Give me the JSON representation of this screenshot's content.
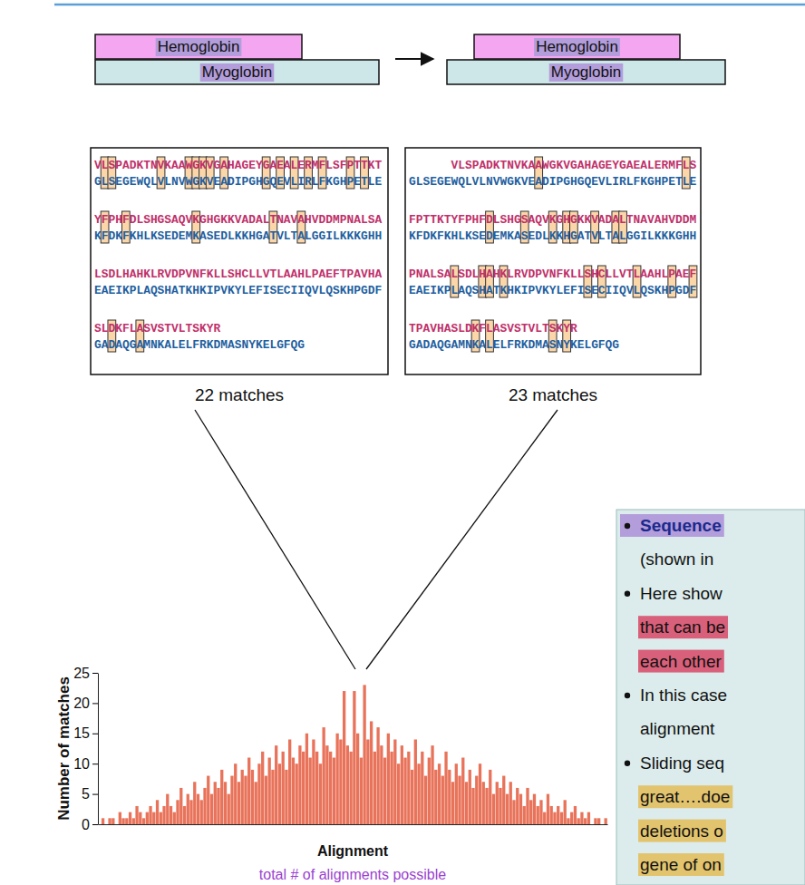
{
  "diagram": [
    {
      "top": "Hemoglobin",
      "bottom": "Myoglobin"
    },
    {
      "top": "Hemoglobin",
      "bottom": "Myoglobin"
    }
  ],
  "alignments": [
    {
      "rows": [
        {
          "top": "VLSPADKTNVKAAWGKVGAHAGEYGAEALERMFLSFPTTKT",
          "bottom": "GLSEGEWQLVLNVWGKVEADIPGHGQEVLIRLFKGHPETLE"
        },
        {
          "top": "YFPHFDLSHGSAQVKGHGKKVADALTNAVAHVDDMPNALSA",
          "bottom": "KFDKFKHLKSEDEMKASEDLKKHGATVLTALGGILKKKGHH"
        },
        {
          "top": "LSDLHAHKLRVDPVNFKLLSHCLLVTLAAHLPAEFTPAVHA",
          "bottom": "EAEIKPLAQSHATKHKIPVKYLEFISECIIQVLQSKHPGDF"
        },
        {
          "top": "SLDKFLASVSTVLTSKYR",
          "bottom": "GADAQGAMNKALELFRKDMASNYKELGFQG"
        }
      ],
      "caption": "22 matches"
    },
    {
      "rows": [
        {
          "top": "VLSPADKTNVKAAWGKVGAHAGEYGAEALERMFLS",
          "bottom": "GLSEGEWQLVLNVWGKVEADIPGHGQEVLIRLFKGHPETLE"
        },
        {
          "top": "FPTTKTYFPHFDLSHGSAQVKGHGKKVADALTNAVAHVDDM",
          "bottom": "KFDKFKHLKSEDEMKASEDLKKHGATVLTALGGILKKKGHH"
        },
        {
          "top": "PNALSALSDLHAHKLRVDPVNFKLLSHCLLVTLAAHLPAEF",
          "bottom": "EAEIKPLAQSHATKHKIPVKYLEFISECIIQVLQSKHPGDF"
        },
        {
          "top": "TPAVHASLDKFLASVSTVLTSKYR",
          "bottom": "GADAQGAMNKALELFRKDMASNYKELGFQG"
        }
      ],
      "caption": "23 matches"
    }
  ],
  "chart_data": {
    "type": "bar",
    "x_label": "Alignment",
    "y_label": "Number of matches",
    "annotations": [
      "total # of alignments possible"
    ],
    "categories": [
      null,
      null,
      null,
      null,
      null,
      null,
      null,
      null,
      null,
      null,
      null,
      null,
      null,
      null,
      null,
      null,
      null,
      null,
      null,
      null,
      null,
      null,
      null,
      null,
      null,
      null,
      null,
      null,
      null,
      null,
      null,
      null,
      null,
      null,
      null,
      null,
      null,
      null,
      null,
      null,
      null,
      null,
      null,
      null,
      null,
      null,
      null,
      null,
      null,
      null,
      null,
      null,
      null,
      null,
      null,
      null,
      null,
      null,
      null,
      null,
      null,
      null,
      null,
      null,
      null,
      null,
      null,
      null,
      null,
      null,
      null,
      null,
      null,
      null,
      null,
      null,
      null,
      null,
      null,
      null,
      null,
      null,
      null,
      null,
      null,
      null,
      null,
      null,
      null,
      null,
      null,
      null,
      null,
      null,
      null,
      null,
      null,
      null,
      null,
      null,
      null,
      null,
      null,
      null,
      null,
      null,
      null,
      null,
      null,
      null,
      null,
      null,
      null,
      null,
      null,
      null,
      null,
      null,
      null,
      null,
      null,
      null,
      null,
      null,
      null,
      null,
      null,
      null,
      null,
      null,
      null,
      null,
      null,
      null,
      null,
      null,
      null,
      null,
      null,
      null,
      null,
      null,
      null,
      null,
      null,
      null,
      null,
      null,
      null,
      null
    ],
    "values": [
      0,
      1,
      0,
      1,
      1,
      0,
      2,
      1,
      1,
      2,
      1,
      3,
      2,
      1,
      2,
      3,
      2,
      4,
      2,
      3,
      5,
      3,
      2,
      4,
      6,
      3,
      5,
      4,
      7,
      5,
      4,
      6,
      8,
      5,
      7,
      6,
      9,
      7,
      5,
      8,
      10,
      7,
      9,
      8,
      11,
      9,
      7,
      10,
      12,
      8,
      11,
      9,
      13,
      10,
      12,
      9,
      14,
      11,
      10,
      13,
      12,
      15,
      11,
      14,
      12,
      10,
      16,
      13,
      12,
      11,
      15,
      14,
      22,
      13,
      12,
      22,
      15,
      11,
      23,
      14,
      17,
      12,
      16,
      13,
      11,
      15,
      12,
      14,
      10,
      13,
      11,
      12,
      9,
      14,
      10,
      12,
      8,
      11,
      13,
      9,
      10,
      8,
      12,
      9,
      7,
      10,
      8,
      11,
      7,
      9,
      6,
      8,
      10,
      7,
      6,
      9,
      5,
      7,
      6,
      8,
      5,
      7,
      4,
      6,
      5,
      3,
      6,
      4,
      5,
      3,
      4,
      2,
      5,
      3,
      2,
      3,
      2,
      4,
      1,
      2,
      3,
      1,
      2,
      1,
      2,
      0,
      1,
      1,
      0,
      1
    ],
    "color": "#e8735a",
    "ylim": [
      0,
      25
    ],
    "yticks": [
      0,
      5,
      10,
      15,
      20,
      25
    ],
    "tick_labels": "y"
  },
  "bullets": [
    {
      "lines": [
        {
          "text": "Sequence",
          "bold": true,
          "color": "#1b2a8c",
          "highlight": "#b39ddb"
        },
        {
          "text": "(shown in"
        }
      ]
    },
    {
      "lines": [
        {
          "text": "Here show"
        },
        {
          "text": "that can be",
          "highlight": "#d9607a"
        },
        {
          "text": "each other",
          "highlight": "#d9607a"
        }
      ]
    },
    {
      "lines": [
        {
          "text": "In this case"
        },
        {
          "text": "alignment"
        }
      ]
    },
    {
      "lines": [
        {
          "text": "Sliding seq"
        },
        {
          "text": "great….doe",
          "highlight": "#e3c46e"
        },
        {
          "text": "deletions o",
          "highlight": "#e3c46e"
        },
        {
          "text": "gene of on",
          "highlight": "#e3c46e"
        }
      ]
    }
  ]
}
